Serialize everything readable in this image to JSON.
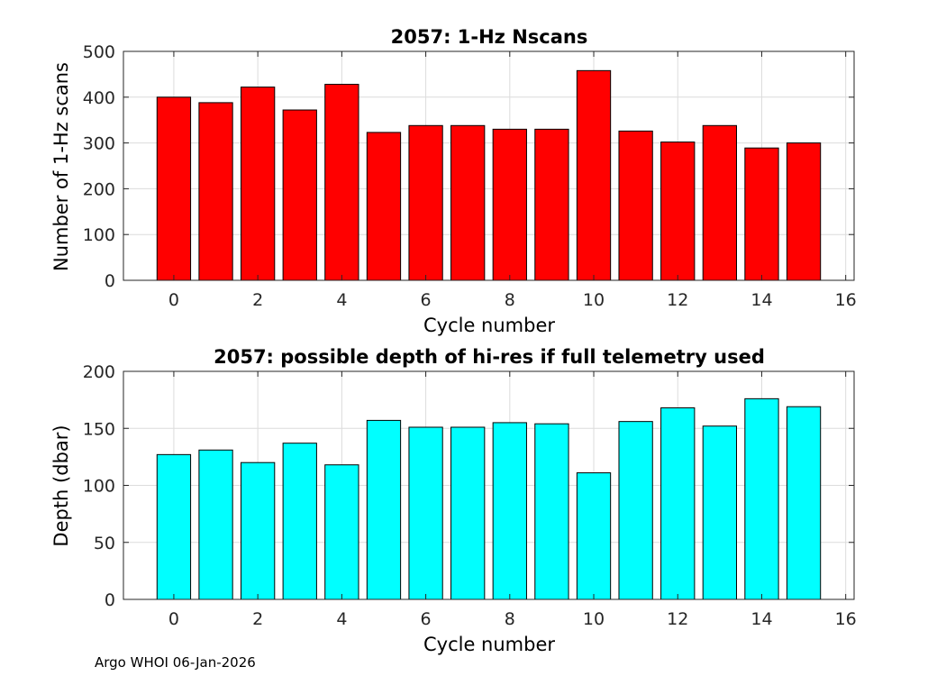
{
  "footer": "Argo WHOI 06-Jan-2026",
  "colors": {
    "top_bar": "#ff0000",
    "bottom_bar": "#00ffff",
    "edge": "#000000",
    "grid": "#dcdcdc"
  },
  "chart_data": [
    {
      "type": "bar",
      "title": "2057: 1-Hz Nscans",
      "xlabel": "Cycle number",
      "ylabel": "Number of 1-Hz scans",
      "x": [
        0,
        1,
        2,
        3,
        4,
        5,
        6,
        7,
        8,
        9,
        10,
        11,
        12,
        13,
        14,
        15
      ],
      "values": [
        400,
        388,
        422,
        372,
        428,
        323,
        338,
        338,
        330,
        330,
        458,
        326,
        302,
        338,
        289,
        300
      ],
      "xlim": [
        -1.2,
        16.2
      ],
      "ylim": [
        0,
        500
      ],
      "xticks": [
        0,
        2,
        4,
        6,
        8,
        10,
        12,
        14,
        16
      ],
      "yticks": [
        0,
        100,
        200,
        300,
        400,
        500
      ],
      "grid": true,
      "color": "#ff0000"
    },
    {
      "type": "bar",
      "title": "2057: possible depth of hi-res if full telemetry used",
      "xlabel": "Cycle number",
      "ylabel": "Depth (dbar)",
      "x": [
        0,
        1,
        2,
        3,
        4,
        5,
        6,
        7,
        8,
        9,
        10,
        11,
        12,
        13,
        14,
        15
      ],
      "values": [
        127,
        131,
        120,
        137,
        118,
        157,
        151,
        151,
        155,
        154,
        111,
        156,
        168,
        152,
        176,
        169
      ],
      "xlim": [
        -1.2,
        16.2
      ],
      "ylim": [
        0,
        200
      ],
      "xticks": [
        0,
        2,
        4,
        6,
        8,
        10,
        12,
        14,
        16
      ],
      "yticks": [
        0,
        50,
        100,
        150,
        200
      ],
      "grid": true,
      "color": "#00ffff"
    }
  ]
}
